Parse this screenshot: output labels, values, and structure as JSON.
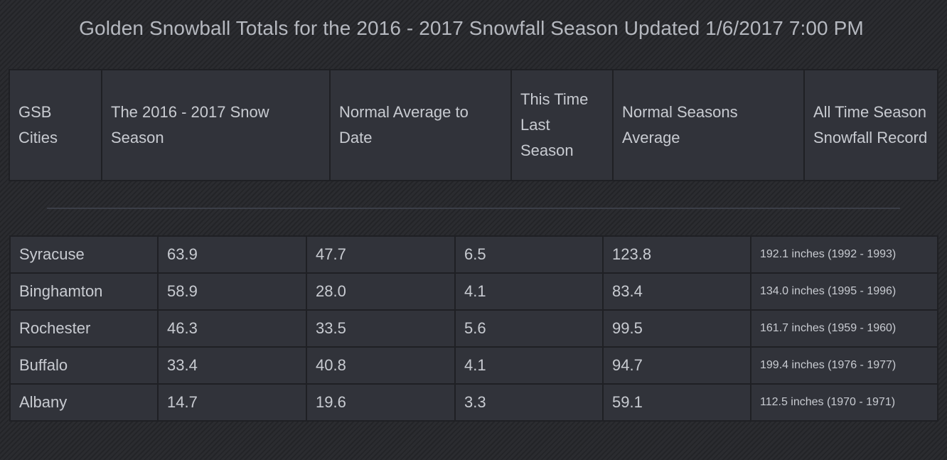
{
  "title": "Golden Snowball Totals for the 2016 - 2017 Snowfall Season Updated 1/6/2017 7:00 PM",
  "headers": [
    "GSB Cities",
    "The 2016 - 2017 Snow Season",
    "Normal Average to Date",
    "This Time Last Season",
    "Normal Seasons Average",
    "All Time Season Snowfall Record"
  ],
  "rows": [
    [
      "Syracuse",
      "63.9",
      "47.7",
      "6.5",
      "123.8",
      "192.1 inches (1992 - 1993)"
    ],
    [
      "Binghamton",
      "58.9",
      "28.0",
      "4.1",
      "83.4",
      "134.0 inches (1995 - 1996)"
    ],
    [
      "Rochester",
      "46.3",
      "33.5",
      "5.6",
      "99.5",
      "161.7 inches (1959 - 1960)"
    ],
    [
      "Buffalo",
      "33.4",
      "40.8",
      "4.1",
      "94.7",
      "199.4 inches (1976 - 1977)"
    ],
    [
      "Albany",
      "14.7",
      "19.6",
      "3.3",
      "59.1",
      "112.5 inches (1970 - 1971)"
    ]
  ]
}
